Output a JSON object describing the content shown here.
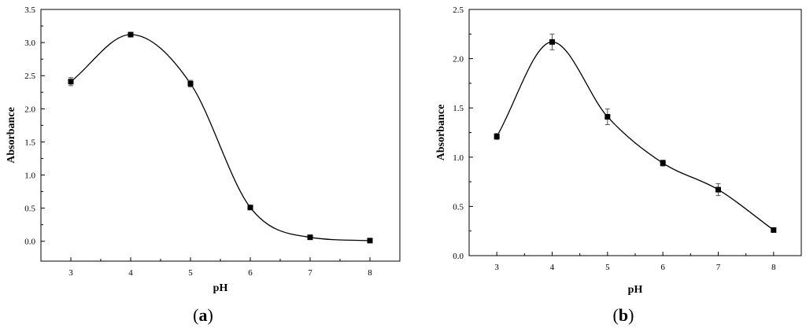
{
  "chart_data": [
    {
      "type": "line",
      "panel_label": "a",
      "xlabel": "pH",
      "ylabel": "Absorbance",
      "xlim": [
        2.5,
        8.5
      ],
      "ylim": [
        -0.3,
        3.5
      ],
      "x_ticks": [
        3,
        4,
        5,
        6,
        7,
        8
      ],
      "y_ticks": [
        0.0,
        0.5,
        1.0,
        1.5,
        2.0,
        2.5,
        3.0,
        3.5
      ],
      "y_tick_labels": [
        "0.0",
        "0.5",
        "1.0",
        "1.5",
        "2.0",
        "2.5",
        "3.0",
        "3.5"
      ],
      "series": [
        {
          "x": [
            3,
            4,
            5,
            6,
            7,
            8
          ],
          "y": [
            2.41,
            3.12,
            2.38,
            0.51,
            0.06,
            0.01
          ],
          "error": [
            0.06,
            0.02,
            0.05,
            0.03,
            0.02,
            0.01
          ],
          "smooth": true
        }
      ],
      "grid": false,
      "color": "#000000"
    },
    {
      "type": "line",
      "panel_label": "b",
      "xlabel": "pH",
      "ylabel": "Absorbance",
      "xlim": [
        2.5,
        8.5
      ],
      "ylim": [
        0.0,
        2.5
      ],
      "x_ticks": [
        3,
        4,
        5,
        6,
        7,
        8
      ],
      "y_ticks": [
        0.0,
        0.5,
        1.0,
        1.5,
        2.0,
        2.5
      ],
      "y_tick_labels": [
        "0.0",
        "0.5",
        "1.0",
        "1.5",
        "2.0",
        "2.5"
      ],
      "series": [
        {
          "x": [
            3,
            4,
            5,
            6,
            7,
            8
          ],
          "y": [
            1.21,
            2.17,
            1.41,
            0.94,
            0.67,
            0.26
          ],
          "error": [
            0.03,
            0.08,
            0.08,
            0.03,
            0.06,
            0.01
          ],
          "smooth": true
        }
      ],
      "grid": false,
      "color": "#000000"
    }
  ]
}
